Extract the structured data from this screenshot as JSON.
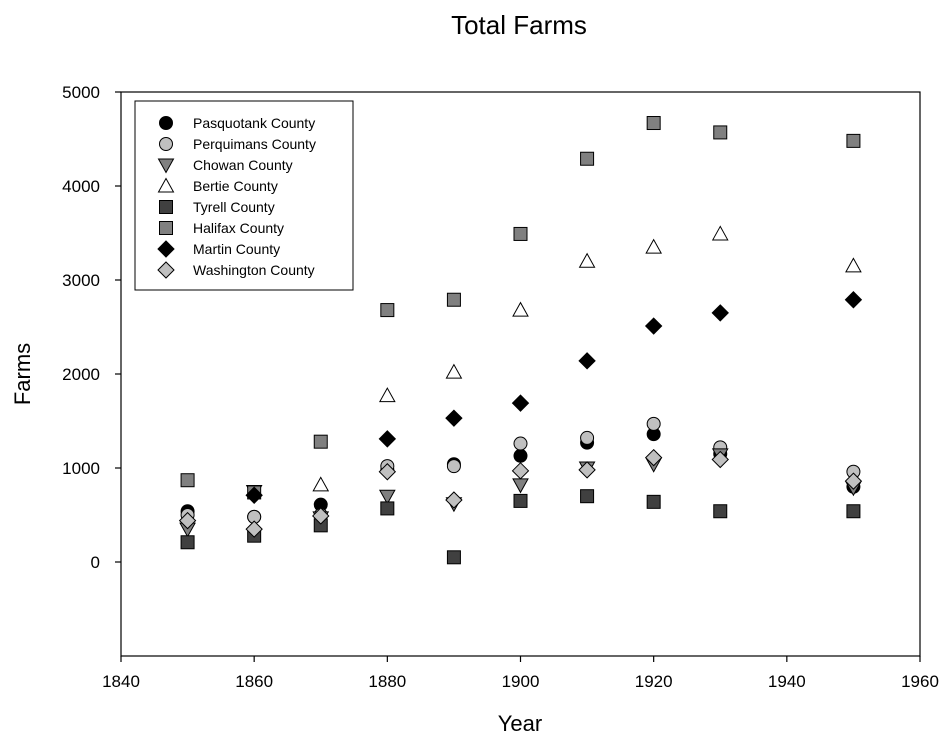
{
  "chart_data": {
    "type": "scatter",
    "title": "Total Farms",
    "xlabel": "Year",
    "ylabel": "Farms",
    "xlim": [
      1840,
      1960
    ],
    "ylim": [
      -1000,
      5000
    ],
    "xticks": [
      1840,
      1860,
      1880,
      1900,
      1920,
      1940,
      1960
    ],
    "yticks": [
      0,
      1000,
      2000,
      3000,
      4000,
      5000
    ],
    "grid": false,
    "legend_position": "top-left",
    "series": [
      {
        "name": "Pasquotank County",
        "marker": "circle",
        "fill": "#000000",
        "points": [
          [
            1850,
            540
          ],
          [
            1860,
            480
          ],
          [
            1870,
            610
          ],
          [
            1880,
            980
          ],
          [
            1890,
            1040
          ],
          [
            1900,
            1130
          ],
          [
            1910,
            1270
          ],
          [
            1920,
            1360
          ],
          [
            1930,
            1150
          ],
          [
            1950,
            800
          ]
        ]
      },
      {
        "name": "Perquimans County",
        "marker": "circle",
        "fill": "#c0c0c0",
        "points": [
          [
            1850,
            500
          ],
          [
            1860,
            480
          ],
          [
            1870,
            500
          ],
          [
            1880,
            1020
          ],
          [
            1890,
            1020
          ],
          [
            1900,
            1260
          ],
          [
            1910,
            1320
          ],
          [
            1920,
            1470
          ],
          [
            1930,
            1220
          ],
          [
            1950,
            960
          ]
        ]
      },
      {
        "name": "Chowan County",
        "marker": "triangle-down",
        "fill": "#808080",
        "points": [
          [
            1850,
            350
          ],
          [
            1860,
            750
          ],
          [
            1870,
            470
          ],
          [
            1880,
            700
          ],
          [
            1890,
            620
          ],
          [
            1900,
            820
          ],
          [
            1910,
            1000
          ],
          [
            1920,
            1040
          ],
          [
            1930,
            1140
          ],
          [
            1950,
            790
          ]
        ]
      },
      {
        "name": "Bertie County",
        "marker": "triangle-up",
        "fill": "#ffffff",
        "points": [
          [
            1870,
            820
          ],
          [
            1880,
            1770
          ],
          [
            1890,
            2020
          ],
          [
            1900,
            2680
          ],
          [
            1910,
            3200
          ],
          [
            1920,
            3350
          ],
          [
            1930,
            3490
          ],
          [
            1950,
            3150
          ]
        ]
      },
      {
        "name": "Tyrell County",
        "marker": "square",
        "fill": "#404040",
        "points": [
          [
            1850,
            210
          ],
          [
            1860,
            280
          ],
          [
            1870,
            390
          ],
          [
            1880,
            570
          ],
          [
            1890,
            50
          ],
          [
            1900,
            650
          ],
          [
            1910,
            700
          ],
          [
            1920,
            640
          ],
          [
            1930,
            540
          ],
          [
            1950,
            540
          ]
        ]
      },
      {
        "name": "Halifax County",
        "marker": "square",
        "fill": "#808080",
        "points": [
          [
            1850,
            870
          ],
          [
            1860,
            740
          ],
          [
            1870,
            1280
          ],
          [
            1880,
            2680
          ],
          [
            1890,
            2790
          ],
          [
            1900,
            3490
          ],
          [
            1910,
            4290
          ],
          [
            1920,
            4670
          ],
          [
            1930,
            4570
          ],
          [
            1950,
            4480
          ]
        ]
      },
      {
        "name": "Martin County",
        "marker": "diamond",
        "fill": "#000000",
        "points": [
          [
            1860,
            710
          ],
          [
            1880,
            1310
          ],
          [
            1890,
            1530
          ],
          [
            1900,
            1690
          ],
          [
            1910,
            2140
          ],
          [
            1920,
            2510
          ],
          [
            1930,
            2650
          ],
          [
            1950,
            2790
          ]
        ]
      },
      {
        "name": "Washington County",
        "marker": "diamond",
        "fill": "#c0c0c0",
        "points": [
          [
            1850,
            440
          ],
          [
            1860,
            350
          ],
          [
            1870,
            490
          ],
          [
            1880,
            960
          ],
          [
            1890,
            660
          ],
          [
            1900,
            970
          ],
          [
            1910,
            980
          ],
          [
            1920,
            1110
          ],
          [
            1930,
            1090
          ],
          [
            1950,
            860
          ]
        ]
      }
    ]
  }
}
